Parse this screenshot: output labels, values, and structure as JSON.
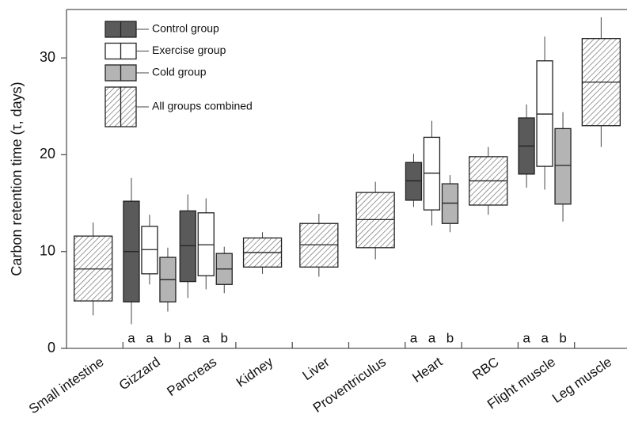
{
  "chart_data": {
    "type": "box",
    "ylabel": "Carbon retention time (τ, days)",
    "ylim": [
      0,
      35
    ],
    "yticks": [
      0,
      10,
      20,
      30
    ],
    "categories": [
      "Small intestine",
      "Gizzard",
      "Pancreas",
      "Kidney",
      "Liver",
      "Proventriculus",
      "Heart",
      "RBC",
      "Flight muscle",
      "Leg muscle"
    ],
    "series": [
      {
        "name": "Control group",
        "color": "#5a5a5a",
        "hatch": false,
        "values": [
          null,
          [
            2.5,
            4.8,
            10.0,
            15.2,
            17.6
          ],
          [
            5.2,
            6.9,
            10.6,
            14.2,
            15.9
          ],
          null,
          null,
          null,
          [
            14.6,
            15.3,
            17.3,
            19.2,
            20.1
          ],
          null,
          [
            16.6,
            18.0,
            20.9,
            23.8,
            25.2
          ],
          null
        ],
        "letters": [
          null,
          "a",
          "a",
          null,
          null,
          null,
          "a",
          null,
          "a",
          null
        ]
      },
      {
        "name": "Exercise group",
        "color": "#ffffff",
        "hatch": false,
        "values": [
          null,
          [
            6.6,
            7.7,
            10.2,
            12.6,
            13.8
          ],
          [
            6.1,
            7.5,
            10.7,
            14.0,
            15.5
          ],
          null,
          null,
          null,
          [
            12.7,
            14.3,
            18.1,
            21.8,
            23.5
          ],
          null,
          [
            16.4,
            18.8,
            24.2,
            29.7,
            32.2
          ],
          null
        ],
        "letters": [
          null,
          "a",
          "a",
          null,
          null,
          null,
          "a",
          null,
          "a",
          null
        ]
      },
      {
        "name": "Cold group",
        "color": "#b4b4b4",
        "hatch": false,
        "values": [
          null,
          [
            3.8,
            4.8,
            7.1,
            9.4,
            10.4
          ],
          [
            5.7,
            6.6,
            8.2,
            9.8,
            10.5
          ],
          null,
          null,
          null,
          [
            12.0,
            12.9,
            15.0,
            17.0,
            17.9
          ],
          null,
          [
            13.1,
            14.9,
            18.9,
            22.7,
            24.4
          ],
          null
        ],
        "letters": [
          null,
          "b",
          "b",
          null,
          null,
          null,
          "b",
          null,
          "b",
          null
        ]
      },
      {
        "name": "All groups combined",
        "color": "#ffffff",
        "hatch": true,
        "values": [
          [
            3.4,
            4.9,
            8.2,
            11.6,
            13.0
          ],
          null,
          null,
          [
            7.7,
            8.4,
            9.9,
            11.4,
            12.0
          ],
          [
            7.4,
            8.4,
            10.7,
            12.9,
            13.9
          ],
          [
            9.2,
            10.4,
            13.3,
            16.1,
            17.2
          ],
          null,
          [
            13.8,
            14.8,
            17.3,
            19.8,
            20.8
          ],
          null,
          [
            20.8,
            23.0,
            27.5,
            32.0,
            34.2
          ]
        ]
      }
    ]
  }
}
